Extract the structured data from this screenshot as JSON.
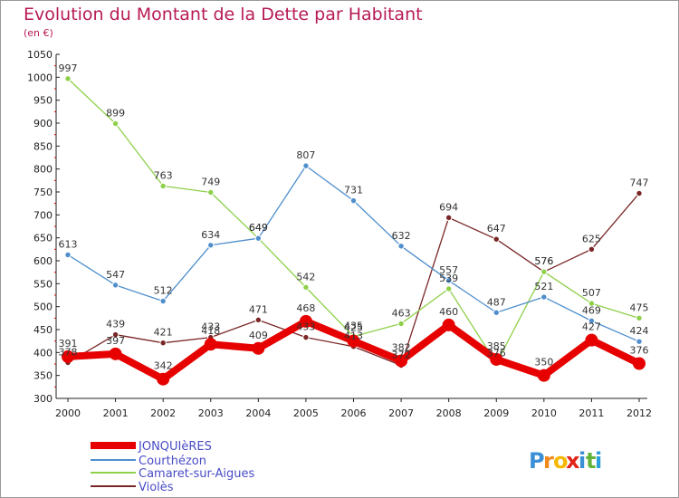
{
  "chart_data": {
    "type": "line",
    "title": "Evolution du Montant de la Dette par Habitant",
    "subtitle": "(en €)",
    "categories": [
      "2000",
      "2001",
      "2002",
      "2003",
      "2004",
      "2005",
      "2006",
      "2007",
      "2008",
      "2009",
      "2010",
      "2011",
      "2012"
    ],
    "yticks": [
      300,
      350,
      400,
      450,
      500,
      550,
      600,
      650,
      700,
      750,
      800,
      850,
      900,
      950,
      1000,
      1050
    ],
    "ylim": [
      300,
      1050
    ],
    "grid": false,
    "legend_position": "bottom-left",
    "series": [
      {
        "name": "JONQUIèRES",
        "color": "#e60000",
        "values": [
          391,
          397,
          342,
          418,
          409,
          468,
          425,
          382,
          460,
          385,
          350,
          427,
          376
        ]
      },
      {
        "name": "Courthézon",
        "color": "#4f8fcc",
        "values": [
          613,
          547,
          512,
          634,
          649,
          807,
          731,
          632,
          557,
          487,
          521,
          469,
          424
        ]
      },
      {
        "name": "Camaret-sur-Aigues",
        "color": "#8ed04a",
        "values": [
          997,
          899,
          763,
          749,
          649,
          542,
          435,
          463,
          539,
          376,
          576,
          507,
          475
        ]
      },
      {
        "name": "Violès",
        "color": "#7a2626",
        "values": [
          378,
          439,
          421,
          433,
          471,
          433,
          413,
          372,
          694,
          647,
          576,
          625,
          747
        ]
      }
    ]
  },
  "brand": {
    "logo_text": "Proxiti"
  }
}
